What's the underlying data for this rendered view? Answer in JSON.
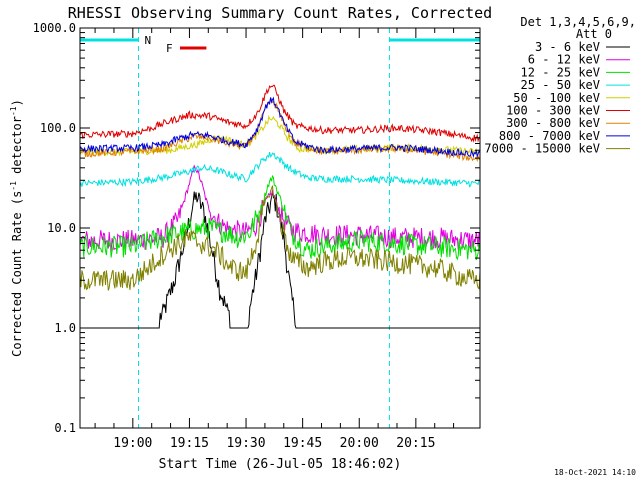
{
  "chart_data": {
    "type": "line",
    "title": "RHESSI Observing Summary Count Rates, Corrected",
    "xlabel": "Start Time (26-Jul-05 18:46:02)",
    "ylabel_main": "Corrected Count Rate (s",
    "ylabel_sup1": "-1",
    "ylabel_mid": " detector",
    "ylabel_sup2": "-1",
    "ylabel_end": ")",
    "footer": "18-Oct-2021 14:10",
    "yscale": "log",
    "ylim": [
      0.1,
      1000
    ],
    "xlim_min": [
      -14,
      92
    ],
    "y_ticks": [
      {
        "v": 1000,
        "label": "1000.0"
      },
      {
        "v": 100,
        "label": "100.0"
      },
      {
        "v": 10,
        "label": "10.0"
      },
      {
        "v": 1,
        "label": "1.0"
      },
      {
        "v": 0.1,
        "label": "0.1"
      }
    ],
    "x_ticks": [
      {
        "v": 0,
        "label": "19:00"
      },
      {
        "v": 15,
        "label": "19:15"
      },
      {
        "v": 30,
        "label": "19:30"
      },
      {
        "v": 45,
        "label": "19:45"
      },
      {
        "v": 60,
        "label": "20:00"
      },
      {
        "v": 75,
        "label": "20:15"
      }
    ],
    "legend_header": [
      "Det 1,3,4,5,6,9,",
      "Att 0"
    ],
    "legend_placement": "right",
    "night_bars": {
      "color": "#00e0e0",
      "label": "N",
      "intervals": [
        [
          -14,
          1.5
        ],
        [
          68,
          92
        ]
      ]
    },
    "flare_bar": {
      "label": "F",
      "color": "#e00000",
      "interval": [
        12.5,
        19.5
      ]
    },
    "series": [
      {
        "name": "3 - 6 keV",
        "color": "#000000",
        "points": [
          [
            -10,
            1
          ],
          [
            0,
            1
          ],
          [
            4,
            1
          ],
          [
            8,
            1.4
          ],
          [
            11,
            3
          ],
          [
            14,
            8
          ],
          [
            16,
            18
          ],
          [
            17,
            21
          ],
          [
            19,
            14
          ],
          [
            21,
            6
          ],
          [
            23,
            2.5
          ],
          [
            25,
            1.5
          ],
          [
            27,
            1
          ],
          [
            30,
            1
          ],
          [
            33,
            4
          ],
          [
            35,
            12
          ],
          [
            37,
            20
          ],
          [
            38,
            18
          ],
          [
            40,
            8
          ],
          [
            42,
            2
          ],
          [
            44,
            1
          ],
          [
            50,
            1
          ],
          [
            60,
            1
          ],
          [
            70,
            1
          ],
          [
            80,
            1
          ],
          [
            90,
            1
          ]
        ]
      },
      {
        "name": "6 - 12 keV",
        "color": "#e000e0",
        "points": [
          [
            -14,
            7.5
          ],
          [
            0,
            7.5
          ],
          [
            8,
            8
          ],
          [
            12,
            12
          ],
          [
            15,
            28
          ],
          [
            16.5,
            42
          ],
          [
            18,
            30
          ],
          [
            20,
            16
          ],
          [
            23,
            11
          ],
          [
            26,
            9.5
          ],
          [
            30,
            9
          ],
          [
            33,
            11
          ],
          [
            35,
            18
          ],
          [
            37,
            23
          ],
          [
            39,
            14
          ],
          [
            42,
            9.5
          ],
          [
            50,
            8.5
          ],
          [
            60,
            8.5
          ],
          [
            70,
            8
          ],
          [
            80,
            8
          ],
          [
            90,
            7.5
          ]
        ]
      },
      {
        "name": "12 - 25 keV",
        "color": "#00e000",
        "points": [
          [
            -14,
            6.5
          ],
          [
            0,
            6.5
          ],
          [
            5,
            7.5
          ],
          [
            10,
            8.5
          ],
          [
            15,
            9.5
          ],
          [
            20,
            10
          ],
          [
            25,
            9
          ],
          [
            28,
            8
          ],
          [
            31,
            9
          ],
          [
            34,
            16
          ],
          [
            36,
            28
          ],
          [
            37,
            32
          ],
          [
            39,
            20
          ],
          [
            42,
            9
          ],
          [
            46,
            6
          ],
          [
            50,
            6.5
          ],
          [
            55,
            7
          ],
          [
            60,
            7.5
          ],
          [
            70,
            7
          ],
          [
            80,
            6.5
          ],
          [
            90,
            6
          ]
        ]
      },
      {
        "name": "25 - 50 keV",
        "color": "#00e0e0",
        "points": [
          [
            -14,
            28
          ],
          [
            0,
            29
          ],
          [
            8,
            32
          ],
          [
            14,
            36
          ],
          [
            18,
            40
          ],
          [
            22,
            38
          ],
          [
            26,
            34
          ],
          [
            30,
            31
          ],
          [
            32,
            38
          ],
          [
            35,
            50
          ],
          [
            37,
            56
          ],
          [
            39,
            48
          ],
          [
            42,
            38
          ],
          [
            46,
            32
          ],
          [
            50,
            31
          ],
          [
            60,
            31
          ],
          [
            70,
            30
          ],
          [
            80,
            29
          ],
          [
            90,
            28
          ]
        ]
      },
      {
        "name": "50 - 100 keV",
        "color": "#d0d000",
        "points": [
          [
            -14,
            58
          ],
          [
            0,
            58
          ],
          [
            10,
            60
          ],
          [
            18,
            70
          ],
          [
            22,
            80
          ],
          [
            25,
            78
          ],
          [
            28,
            68
          ],
          [
            31,
            72
          ],
          [
            34,
            95
          ],
          [
            36,
            120
          ],
          [
            37,
            125
          ],
          [
            39,
            105
          ],
          [
            41,
            80
          ],
          [
            44,
            62
          ],
          [
            50,
            60
          ],
          [
            60,
            62
          ],
          [
            70,
            64
          ],
          [
            80,
            62
          ],
          [
            90,
            58
          ]
        ]
      },
      {
        "name": "100 - 300 keV",
        "color": "#e00000",
        "points": [
          [
            -14,
            85
          ],
          [
            0,
            88
          ],
          [
            5,
            100
          ],
          [
            10,
            118
          ],
          [
            15,
            135
          ],
          [
            20,
            132
          ],
          [
            25,
            115
          ],
          [
            30,
            105
          ],
          [
            33,
            140
          ],
          [
            35,
            210
          ],
          [
            36,
            255
          ],
          [
            37,
            265
          ],
          [
            38,
            230
          ],
          [
            40,
            150
          ],
          [
            43,
            105
          ],
          [
            50,
            95
          ],
          [
            60,
            95
          ],
          [
            70,
            100
          ],
          [
            80,
            92
          ],
          [
            90,
            80
          ]
        ]
      },
      {
        "name": "300 - 800 keV",
        "color": "#e08000",
        "points": [
          [
            -14,
            55
          ],
          [
            0,
            58
          ],
          [
            8,
            62
          ],
          [
            12,
            72
          ],
          [
            16,
            82
          ],
          [
            20,
            80
          ],
          [
            25,
            70
          ],
          [
            30,
            65
          ],
          [
            33,
            95
          ],
          [
            35,
            150
          ],
          [
            36,
            180
          ],
          [
            37,
            185
          ],
          [
            38,
            165
          ],
          [
            40,
            110
          ],
          [
            43,
            70
          ],
          [
            50,
            58
          ],
          [
            60,
            60
          ],
          [
            70,
            62
          ],
          [
            80,
            57
          ],
          [
            90,
            50
          ]
        ]
      },
      {
        "name": "800 - 7000 keV",
        "color": "#0000e0",
        "points": [
          [
            -14,
            62
          ],
          [
            0,
            63
          ],
          [
            8,
            68
          ],
          [
            12,
            78
          ],
          [
            16,
            86
          ],
          [
            20,
            84
          ],
          [
            25,
            74
          ],
          [
            30,
            68
          ],
          [
            33,
            98
          ],
          [
            35,
            155
          ],
          [
            36,
            185
          ],
          [
            37,
            190
          ],
          [
            38,
            170
          ],
          [
            40,
            112
          ],
          [
            43,
            72
          ],
          [
            50,
            60
          ],
          [
            60,
            62
          ],
          [
            70,
            64
          ],
          [
            80,
            60
          ],
          [
            90,
            55
          ]
        ]
      },
      {
        "name": "7000 - 15000 keV",
        "color": "#808000",
        "points": [
          [
            -14,
            3
          ],
          [
            0,
            3
          ],
          [
            4,
            4
          ],
          [
            8,
            5.5
          ],
          [
            12,
            7
          ],
          [
            15,
            8
          ],
          [
            18,
            7
          ],
          [
            22,
            6
          ],
          [
            26,
            4
          ],
          [
            30,
            3.5
          ],
          [
            33,
            8
          ],
          [
            35,
            18
          ],
          [
            37,
            25
          ],
          [
            39,
            12
          ],
          [
            42,
            5
          ],
          [
            46,
            4
          ],
          [
            50,
            4.5
          ],
          [
            56,
            5
          ],
          [
            60,
            5
          ],
          [
            70,
            4.5
          ],
          [
            80,
            4
          ],
          [
            90,
            3
          ]
        ]
      }
    ]
  }
}
